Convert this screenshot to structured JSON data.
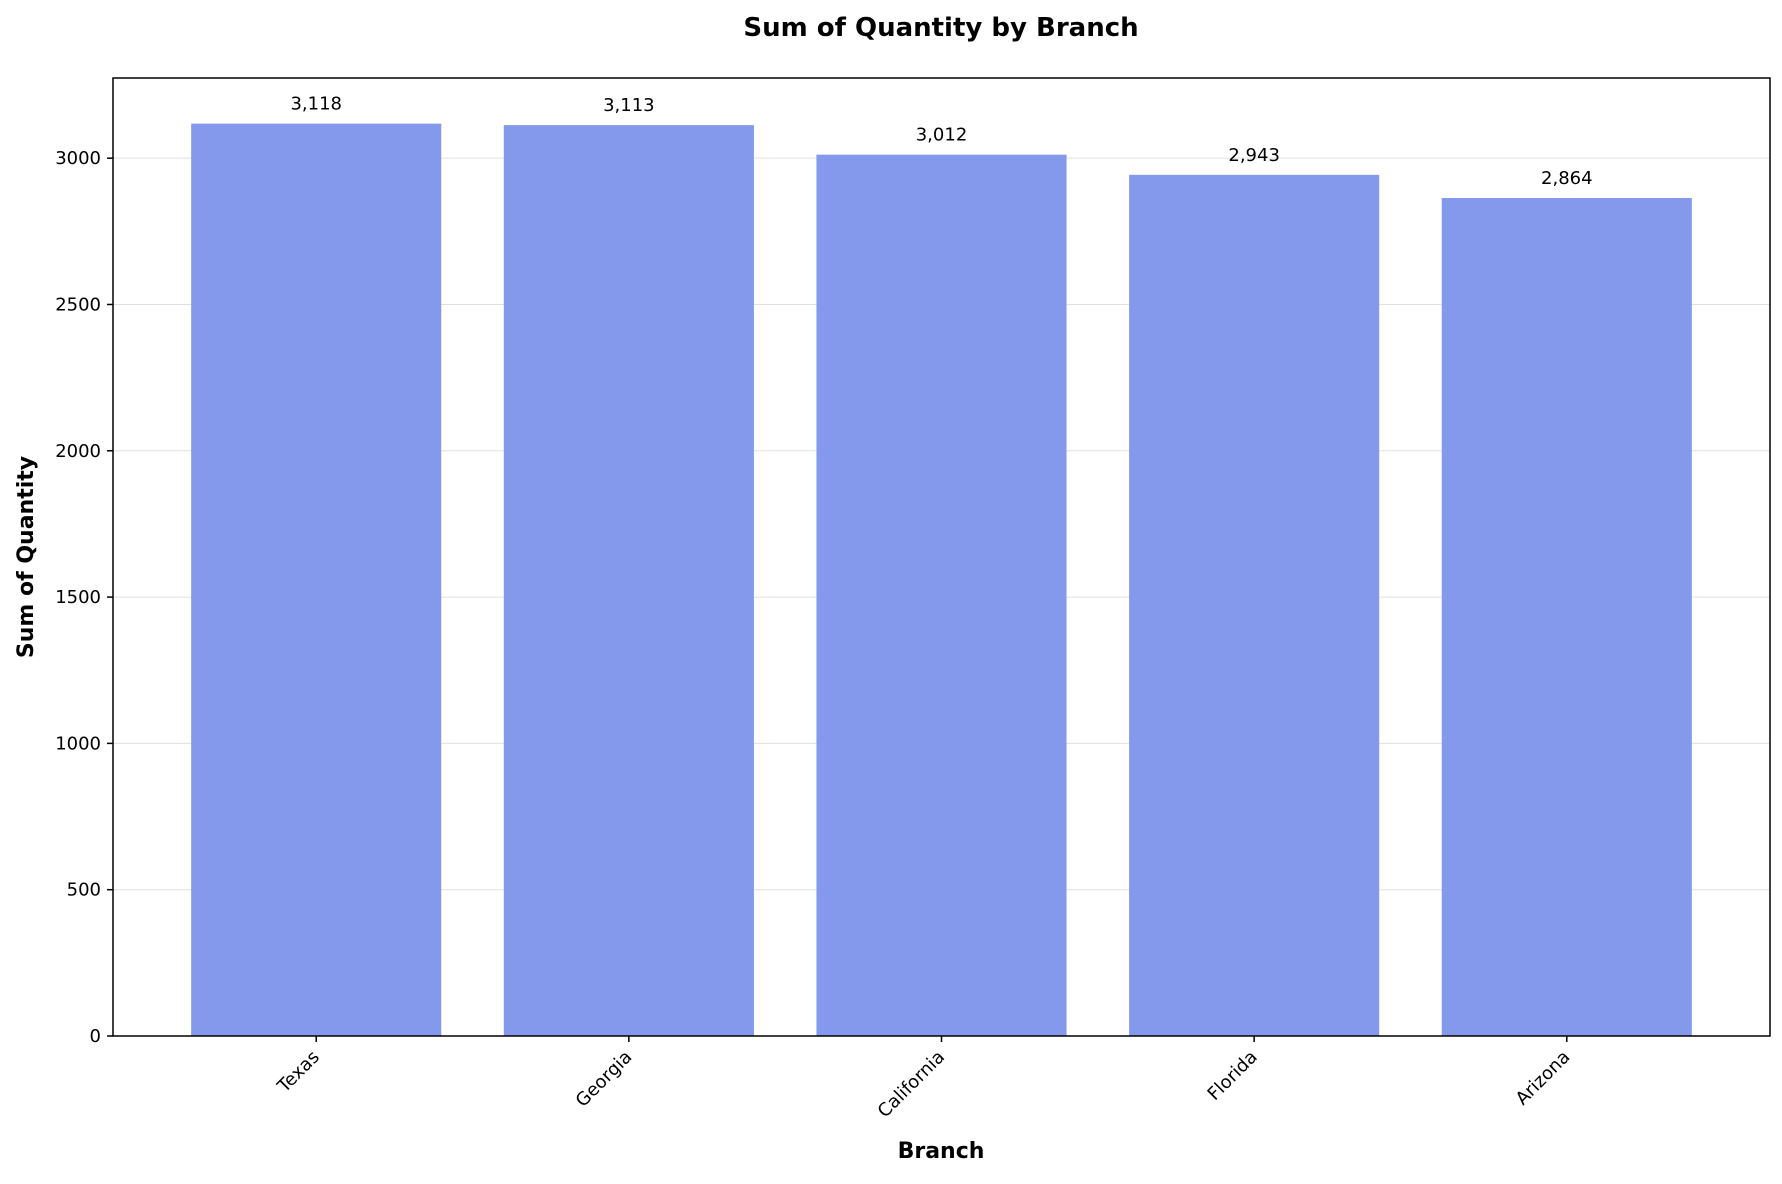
{
  "chart_data": {
    "type": "bar",
    "title": "Sum of Quantity by Branch",
    "xlabel": "Branch",
    "ylabel": "Sum of Quantity",
    "categories": [
      "Texas",
      "Georgia",
      "California",
      "Florida",
      "Arizona"
    ],
    "values": [
      3118,
      3113,
      3012,
      2943,
      2864
    ],
    "data_labels": [
      "3,118",
      "3,113",
      "3,012",
      "2,943",
      "2,864"
    ],
    "yticks": [
      0,
      500,
      1000,
      1500,
      2000,
      2500,
      3000
    ],
    "ylim": [
      0,
      3274
    ],
    "grid": "horizontal",
    "legend": "none",
    "colors": {
      "bar": "#8499ec",
      "grid": "#e0e0e0",
      "axis": "#000000"
    }
  }
}
